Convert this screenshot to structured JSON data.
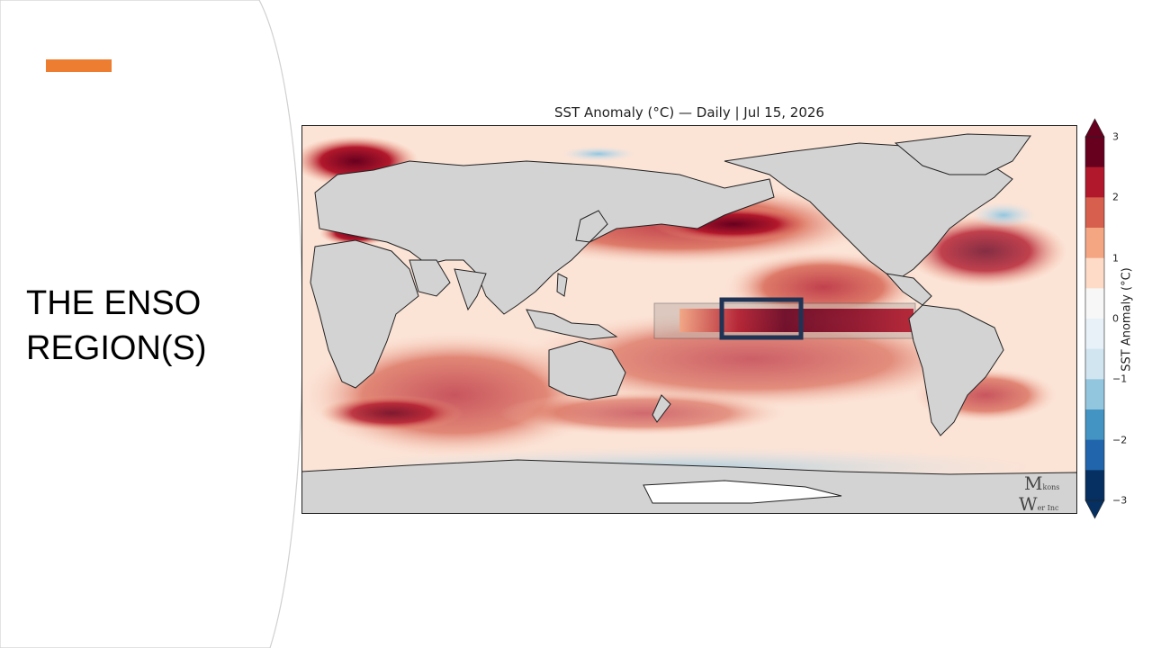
{
  "slide": {
    "title_line1": "THE ENSO",
    "title_line2": "REGION(S)",
    "accent_color": "#ED7D31"
  },
  "map": {
    "title": "SST Anomaly (°C) — Daily | Jul 15, 2026",
    "land_color": "#d3d3d3",
    "ocean_neutral_color": "#f9f2ee",
    "highlight_box_color": "#1f3354"
  },
  "colorbar": {
    "label": "SST Anomaly (°C)",
    "ticks": [
      "3",
      "2",
      "1",
      "0",
      "−1",
      "−2",
      "−3"
    ],
    "colors": [
      "#67001f",
      "#b2182b",
      "#d6604d",
      "#f4a582",
      "#fddbc7",
      "#f7f7f7",
      "#e8f1f7",
      "#d1e5f0",
      "#92c5de",
      "#4393c3",
      "#2166ac",
      "#053061"
    ]
  },
  "watermark": {
    "line1": "M",
    "line1_small": "kons",
    "line2": "W",
    "line2_small": "er Inc"
  }
}
